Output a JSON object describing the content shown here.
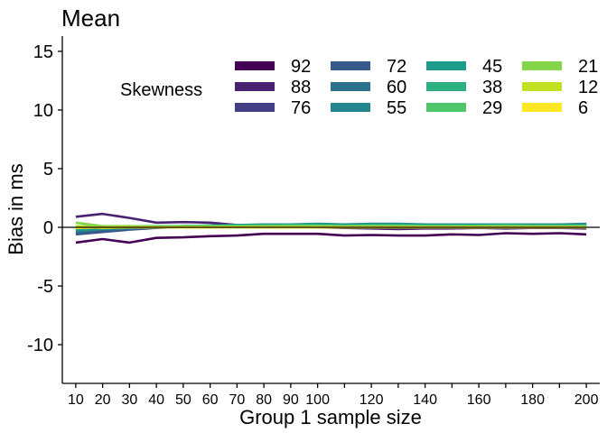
{
  "chart_data": {
    "type": "line",
    "title": "Mean",
    "xlabel": "Group 1 sample size",
    "ylabel": "Bias in ms",
    "xlim": [
      5,
      205
    ],
    "ylim": [
      -13.3,
      16.3
    ],
    "yticks": [
      -10,
      -5,
      0,
      5,
      10,
      15
    ],
    "ytick_labels": [
      "-10",
      "-5",
      "0",
      "5",
      "10",
      "15"
    ],
    "xticks": [
      10,
      20,
      30,
      40,
      50,
      60,
      70,
      80,
      90,
      100,
      110,
      120,
      130,
      140,
      150,
      160,
      170,
      180,
      190,
      200
    ],
    "xtick_labels": [
      "10",
      "20",
      "30",
      "40",
      "50",
      "60",
      "70",
      "80",
      "90",
      "100",
      "",
      "120",
      "",
      "140",
      "",
      "160",
      "",
      "180",
      "",
      "200"
    ],
    "hline": 0,
    "grid": false,
    "legend": {
      "title": "Skewness",
      "placement": "top-right",
      "columns": 4,
      "entries": [
        "92",
        "88",
        "76",
        "72",
        "60",
        "55",
        "45",
        "38",
        "29",
        "21",
        "12",
        "6"
      ]
    },
    "x": [
      10,
      20,
      30,
      40,
      50,
      60,
      70,
      80,
      90,
      100,
      110,
      120,
      130,
      140,
      150,
      160,
      170,
      180,
      190,
      200
    ],
    "series": [
      {
        "name": "92",
        "color": "#440154",
        "values": [
          -1.3,
          -1.0,
          -1.3,
          -0.9,
          -0.85,
          -0.75,
          -0.7,
          -0.55,
          -0.55,
          -0.55,
          -0.7,
          -0.65,
          -0.7,
          -0.7,
          -0.6,
          -0.65,
          -0.5,
          -0.55,
          -0.5,
          -0.6
        ]
      },
      {
        "name": "88",
        "color": "#482173",
        "values": [
          0.9,
          1.15,
          0.8,
          0.4,
          0.45,
          0.4,
          0.2,
          0.1,
          0.05,
          0.0,
          -0.05,
          -0.1,
          -0.15,
          -0.1,
          -0.1,
          -0.05,
          -0.1,
          -0.05,
          -0.05,
          -0.1
        ]
      },
      {
        "name": "76",
        "color": "#433E85",
        "values": [
          -0.5,
          -0.3,
          -0.1,
          0.0,
          0.1,
          0.15,
          0.2,
          0.2,
          0.2,
          0.25,
          0.2,
          0.25,
          0.2,
          0.2,
          0.15,
          0.2,
          0.15,
          0.15,
          0.15,
          0.2
        ]
      },
      {
        "name": "72",
        "color": "#38598C",
        "values": [
          -0.6,
          -0.4,
          -0.2,
          -0.05,
          0.05,
          0.1,
          0.15,
          0.2,
          0.2,
          0.2,
          0.2,
          0.25,
          0.25,
          0.2,
          0.2,
          0.2,
          0.2,
          0.2,
          0.2,
          0.25
        ]
      },
      {
        "name": "60",
        "color": "#2D708E",
        "values": [
          -0.4,
          -0.2,
          -0.1,
          0.0,
          0.05,
          0.1,
          0.15,
          0.15,
          0.2,
          0.2,
          0.15,
          0.2,
          0.2,
          0.2,
          0.15,
          0.15,
          0.2,
          0.2,
          0.15,
          0.2
        ]
      },
      {
        "name": "55",
        "color": "#25858E",
        "values": [
          -0.3,
          -0.15,
          -0.05,
          0.05,
          0.1,
          0.1,
          0.2,
          0.25,
          0.25,
          0.3,
          0.25,
          0.3,
          0.3,
          0.25,
          0.25,
          0.25,
          0.25,
          0.25,
          0.25,
          0.3
        ]
      },
      {
        "name": "45",
        "color": "#1E9B8A",
        "values": [
          -0.2,
          -0.1,
          0.0,
          0.05,
          0.1,
          0.15,
          0.2,
          0.2,
          0.2,
          0.25,
          0.2,
          0.25,
          0.25,
          0.2,
          0.2,
          0.2,
          0.25,
          0.2,
          0.2,
          0.2
        ]
      },
      {
        "name": "38",
        "color": "#2BB07F",
        "values": [
          -0.1,
          0.0,
          0.05,
          0.1,
          0.1,
          0.15,
          0.15,
          0.2,
          0.2,
          0.2,
          0.15,
          0.2,
          0.2,
          0.15,
          0.15,
          0.15,
          0.2,
          0.15,
          0.15,
          0.15
        ]
      },
      {
        "name": "29",
        "color": "#51C56A",
        "values": [
          0.1,
          0.05,
          0.1,
          0.1,
          0.1,
          0.1,
          0.1,
          0.1,
          0.15,
          0.15,
          0.1,
          0.15,
          0.15,
          0.1,
          0.1,
          0.1,
          0.15,
          0.1,
          0.1,
          0.1
        ]
      },
      {
        "name": "21",
        "color": "#85D54A",
        "values": [
          0.4,
          0.1,
          0.1,
          0.05,
          0.05,
          0.05,
          0.05,
          0.05,
          0.05,
          0.05,
          0.05,
          0.05,
          0.05,
          0.05,
          0.05,
          0.05,
          0.05,
          0.05,
          0.05,
          0.05
        ]
      },
      {
        "name": "12",
        "color": "#C2DF23",
        "values": [
          0.1,
          -0.05,
          0.0,
          0.0,
          0.0,
          0.0,
          0.0,
          0.0,
          0.0,
          0.0,
          0.0,
          0.0,
          0.0,
          0.0,
          0.0,
          0.0,
          0.0,
          0.0,
          0.0,
          0.0
        ]
      },
      {
        "name": "6",
        "color": "#FDE725",
        "values": [
          -0.05,
          0.0,
          0.0,
          0.0,
          0.0,
          0.0,
          0.0,
          0.0,
          0.0,
          0.0,
          0.0,
          0.0,
          0.0,
          0.0,
          0.0,
          0.0,
          0.0,
          0.0,
          0.0,
          0.0
        ]
      }
    ]
  }
}
